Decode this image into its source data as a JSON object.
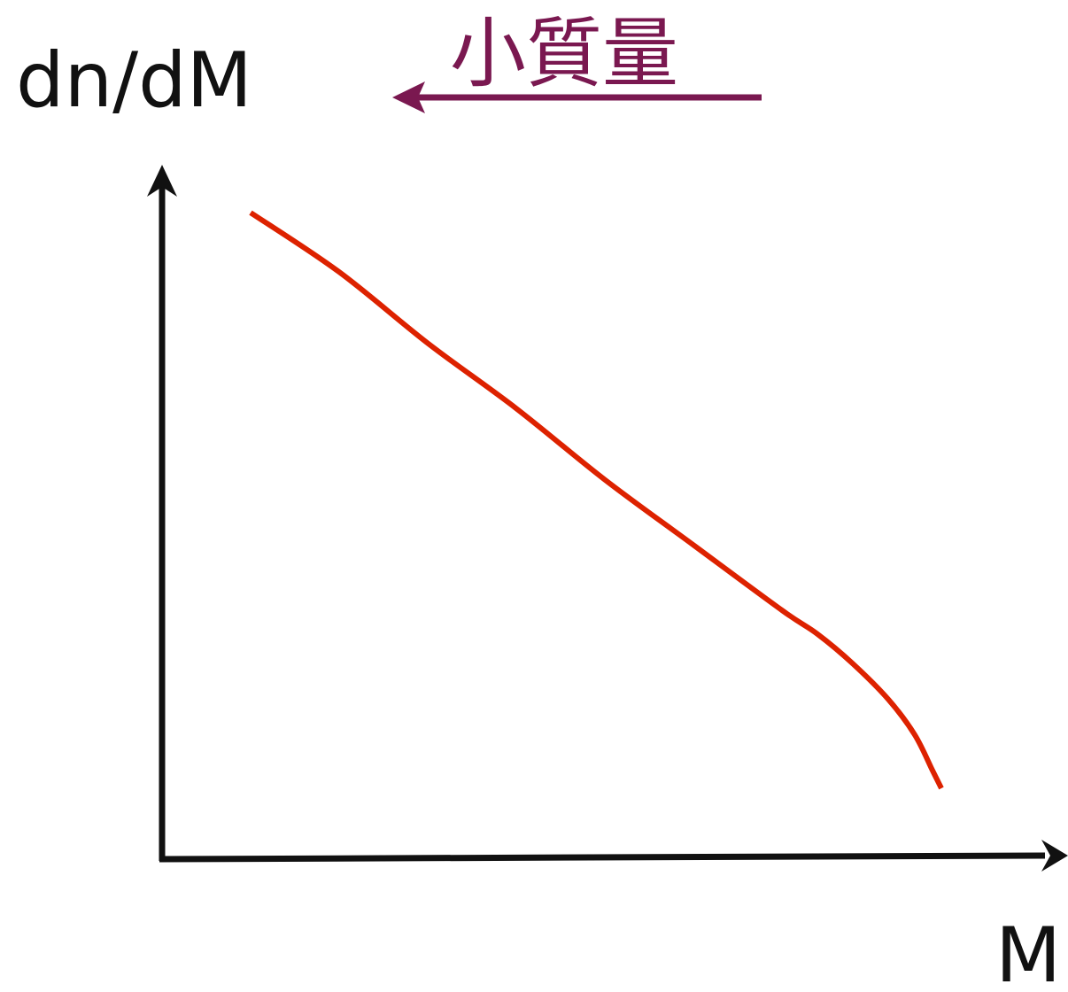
{
  "chart_data": {
    "type": "line",
    "title": "",
    "xlabel": "M",
    "ylabel": "dn/dM",
    "axis_ticks": false,
    "grid": false,
    "series": [
      {
        "color": "#dd2200",
        "x": [
          0.1,
          0.2,
          0.3,
          0.4,
          0.5,
          0.6,
          0.7,
          0.74,
          0.78,
          0.82,
          0.85,
          0.87,
          0.88
        ],
        "y": [
          0.97,
          0.87,
          0.75,
          0.64,
          0.52,
          0.41,
          0.3,
          0.26,
          0.21,
          0.15,
          0.09,
          0.03,
          0.0
        ]
      }
    ],
    "annotation": {
      "text": "小質量",
      "arrow_direction": "left",
      "color": "#7a1850"
    }
  },
  "colors": {
    "axis": "#111111",
    "curve": "#dd2200",
    "annotation": "#7a1850"
  }
}
